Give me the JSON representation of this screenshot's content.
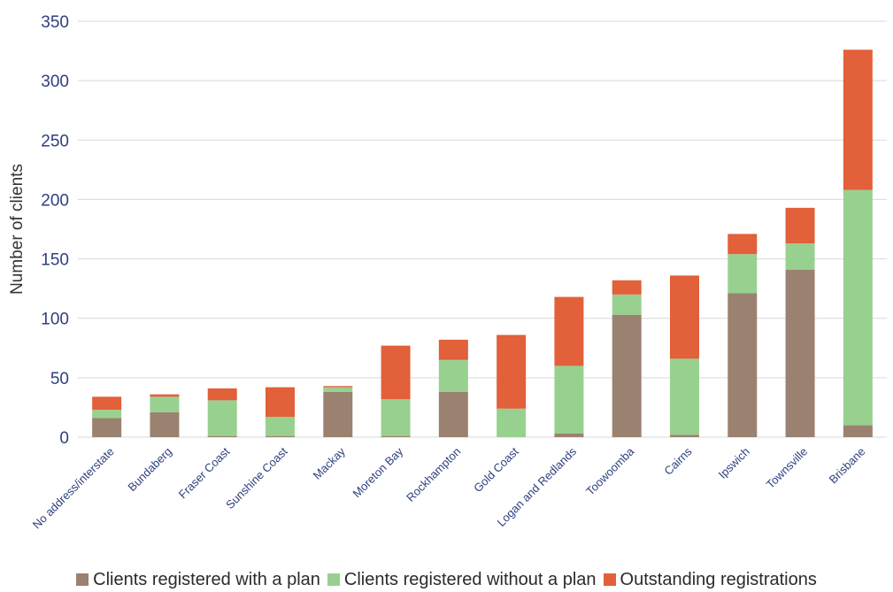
{
  "chart_data": {
    "type": "bar",
    "stacked": true,
    "title": "",
    "xlabel": "",
    "ylabel": "Number of clients",
    "ylim": [
      0,
      350
    ],
    "yticks": [
      0,
      50,
      100,
      150,
      200,
      250,
      300,
      350
    ],
    "grid": true,
    "legend_position": "bottom",
    "categories": [
      "No address/interstate",
      "Bundaberg",
      "Fraser Coast",
      "Sunshine Coast",
      "Mackay",
      "Moreton Bay",
      "Rockhampton",
      "Gold Coast",
      "Logan and Redlands",
      "Toowoomba",
      "Cairns",
      "Ipswich",
      "Townsville",
      "Brisbane"
    ],
    "series": [
      {
        "name": "Clients registered with a plan",
        "color": "#9b8170",
        "values": [
          16,
          21,
          1,
          1,
          38,
          1,
          38,
          0,
          3,
          103,
          2,
          121,
          141,
          10
        ]
      },
      {
        "name": "Clients registered without a plan",
        "color": "#98d18f",
        "values": [
          7,
          13,
          30,
          16,
          4,
          31,
          27,
          24,
          57,
          17,
          64,
          33,
          22,
          198
        ]
      },
      {
        "name": "Outstanding registrations",
        "color": "#e2603a",
        "values": [
          11,
          2,
          10,
          25,
          1,
          45,
          17,
          62,
          58,
          12,
          70,
          17,
          30,
          118
        ]
      }
    ]
  }
}
